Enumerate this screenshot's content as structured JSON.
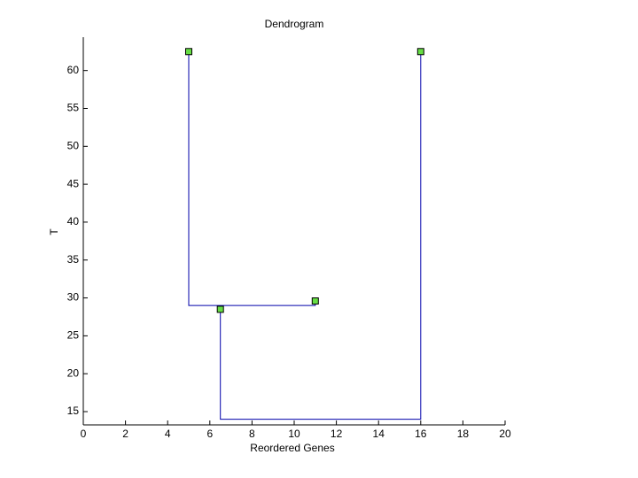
{
  "chart_data": {
    "type": "line",
    "title": "Dendrogram",
    "xlabel": "Reordered Genes",
    "ylabel": "T",
    "xlim": [
      0,
      20
    ],
    "xticks": [
      0,
      2,
      4,
      6,
      8,
      10,
      12,
      14,
      16,
      18,
      20
    ],
    "ylim": [
      13.25,
      64.4
    ],
    "yticks": [
      15,
      20,
      25,
      30,
      35,
      40,
      45,
      50,
      55,
      60
    ],
    "series": [
      {
        "color": "#0000aa",
        "x": [
          5,
          5,
          11,
          11
        ],
        "values": [
          62.5,
          29,
          29,
          29.6
        ]
      },
      {
        "color": "#0000aa",
        "x": [
          6.5,
          6.5,
          16,
          16
        ],
        "values": [
          28.5,
          14,
          14,
          62.5
        ]
      },
      {
        "color": "#66dd44",
        "marker": "square",
        "x": [
          5,
          16,
          6.5,
          11
        ],
        "values": [
          62.5,
          62.5,
          28.5,
          29.6
        ]
      }
    ]
  }
}
